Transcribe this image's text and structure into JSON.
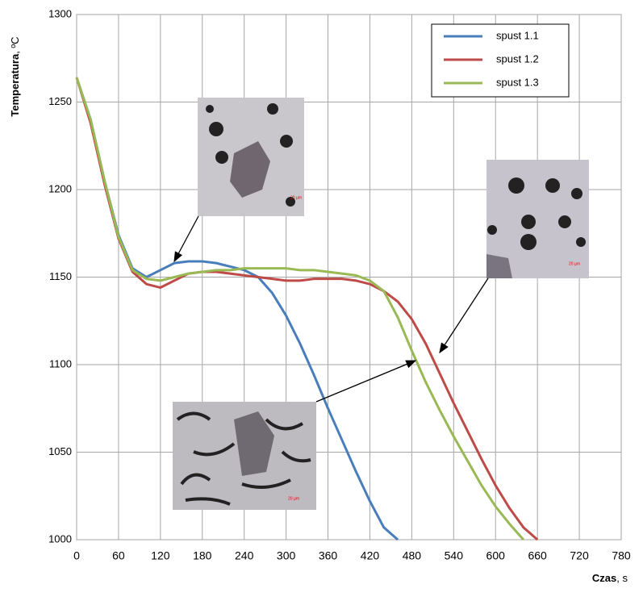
{
  "chart_data": {
    "type": "line",
    "y_label": "Temperatura",
    "y_label_unit": ", ºC",
    "x_label": "Czas",
    "x_label_unit": ", s",
    "scale_bar": "20 µm",
    "x": [
      0,
      20,
      40,
      60,
      80,
      100,
      120,
      140,
      160,
      180,
      200,
      220,
      240,
      260,
      280,
      300,
      320,
      340,
      360,
      380,
      400,
      420,
      440,
      460,
      480,
      500,
      520,
      540,
      560,
      580,
      600,
      620,
      640,
      660
    ],
    "series": [
      {
        "name": "spust 1.1",
        "color": "#4a7ebb",
        "values": [
          1264,
          1240,
          1205,
          1174,
          1155,
          1150,
          1154,
          1158,
          1159,
          1159,
          1158,
          1156,
          1154,
          1150,
          1141,
          1128,
          1112,
          1094,
          1075,
          1057,
          1039,
          1022,
          1007,
          1000,
          null,
          null,
          null,
          null,
          null,
          null,
          null,
          null,
          null,
          null
        ]
      },
      {
        "name": "spust 1.2",
        "color": "#be4b48",
        "values": [
          1264,
          1238,
          1203,
          1172,
          1153,
          1146,
          1144,
          1148,
          1152,
          1153,
          1153,
          1152,
          1151,
          1150,
          1149,
          1148,
          1148,
          1149,
          1149,
          1149,
          1148,
          1146,
          1142,
          1136,
          1126,
          1112,
          1095,
          1078,
          1062,
          1046,
          1031,
          1018,
          1007,
          1000
        ]
      },
      {
        "name": "spust 1.3",
        "color": "#98b954",
        "values": [
          1264,
          1240,
          1205,
          1173,
          1154,
          1149,
          1148,
          1150,
          1152,
          1153,
          1154,
          1154,
          1155,
          1155,
          1155,
          1155,
          1154,
          1154,
          1153,
          1152,
          1151,
          1148,
          1142,
          1127,
          1108,
          1090,
          1074,
          1059,
          1045,
          1031,
          1019,
          1009,
          1000,
          null
        ]
      }
    ],
    "xlim": [
      0,
      780
    ],
    "xticks": [
      0,
      60,
      120,
      180,
      240,
      300,
      360,
      420,
      480,
      540,
      600,
      660,
      720,
      780
    ],
    "ylim": [
      1000,
      1300
    ],
    "yticks": [
      1000,
      1050,
      1100,
      1150,
      1200,
      1250,
      1300
    ],
    "grid": true,
    "legend": "top-right"
  }
}
